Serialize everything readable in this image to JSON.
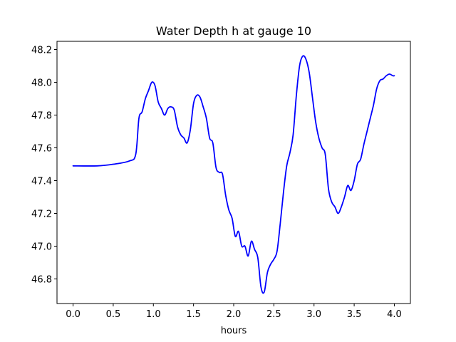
{
  "chart_data": {
    "type": "line",
    "title": "Water Depth h at gauge 10",
    "xlabel": "hours",
    "ylabel": "",
    "xlim": [
      -0.2,
      4.2
    ],
    "ylim": [
      46.65,
      48.25
    ],
    "grid": false,
    "x_ticks": [
      0.0,
      0.5,
      1.0,
      1.5,
      2.0,
      2.5,
      3.0,
      3.5,
      4.0
    ],
    "x_tick_labels": [
      "0.0",
      "0.5",
      "1.0",
      "1.5",
      "2.0",
      "2.5",
      "3.0",
      "3.5",
      "4.0"
    ],
    "y_ticks": [
      46.8,
      47.0,
      47.2,
      47.4,
      47.6,
      47.8,
      48.0,
      48.2
    ],
    "y_tick_labels": [
      "46.8",
      "47.0",
      "47.2",
      "47.4",
      "47.6",
      "47.8",
      "48.0",
      "48.2"
    ],
    "series": [
      {
        "color": "#0000ff",
        "x": [
          0.0,
          0.3,
          0.5,
          0.7,
          0.78,
          0.82,
          0.86,
          0.9,
          0.94,
          0.98,
          1.02,
          1.06,
          1.1,
          1.14,
          1.18,
          1.22,
          1.26,
          1.3,
          1.34,
          1.38,
          1.42,
          1.46,
          1.5,
          1.54,
          1.58,
          1.62,
          1.66,
          1.7,
          1.74,
          1.78,
          1.82,
          1.86,
          1.9,
          1.94,
          1.98,
          2.02,
          2.06,
          2.1,
          2.14,
          2.18,
          2.22,
          2.26,
          2.3,
          2.34,
          2.38,
          2.42,
          2.46,
          2.5,
          2.54,
          2.58,
          2.62,
          2.66,
          2.7,
          2.74,
          2.78,
          2.82,
          2.86,
          2.9,
          2.94,
          2.98,
          3.02,
          3.06,
          3.1,
          3.14,
          3.18,
          3.22,
          3.26,
          3.3,
          3.34,
          3.38,
          3.42,
          3.46,
          3.5,
          3.54,
          3.58,
          3.62,
          3.66,
          3.7,
          3.74,
          3.78,
          3.82,
          3.86,
          3.9,
          3.94,
          3.98,
          4.0
        ],
        "y": [
          47.49,
          47.49,
          47.5,
          47.52,
          47.56,
          47.78,
          47.82,
          47.9,
          47.95,
          48.0,
          47.98,
          47.88,
          47.84,
          47.8,
          47.84,
          47.85,
          47.83,
          47.73,
          47.68,
          47.66,
          47.63,
          47.71,
          47.87,
          47.92,
          47.91,
          47.85,
          47.78,
          47.66,
          47.63,
          47.48,
          47.45,
          47.44,
          47.31,
          47.22,
          47.17,
          47.06,
          47.09,
          47.0,
          47.0,
          46.94,
          47.03,
          46.98,
          46.93,
          46.75,
          46.72,
          46.84,
          46.89,
          46.92,
          46.97,
          47.14,
          47.33,
          47.49,
          47.57,
          47.68,
          47.92,
          48.1,
          48.16,
          48.14,
          48.06,
          47.91,
          47.76,
          47.66,
          47.6,
          47.56,
          47.35,
          47.27,
          47.24,
          47.2,
          47.24,
          47.3,
          47.37,
          47.34,
          47.4,
          47.5,
          47.53,
          47.62,
          47.7,
          47.78,
          47.86,
          47.96,
          48.01,
          48.02,
          48.04,
          48.05,
          48.04,
          48.04
        ]
      }
    ]
  }
}
